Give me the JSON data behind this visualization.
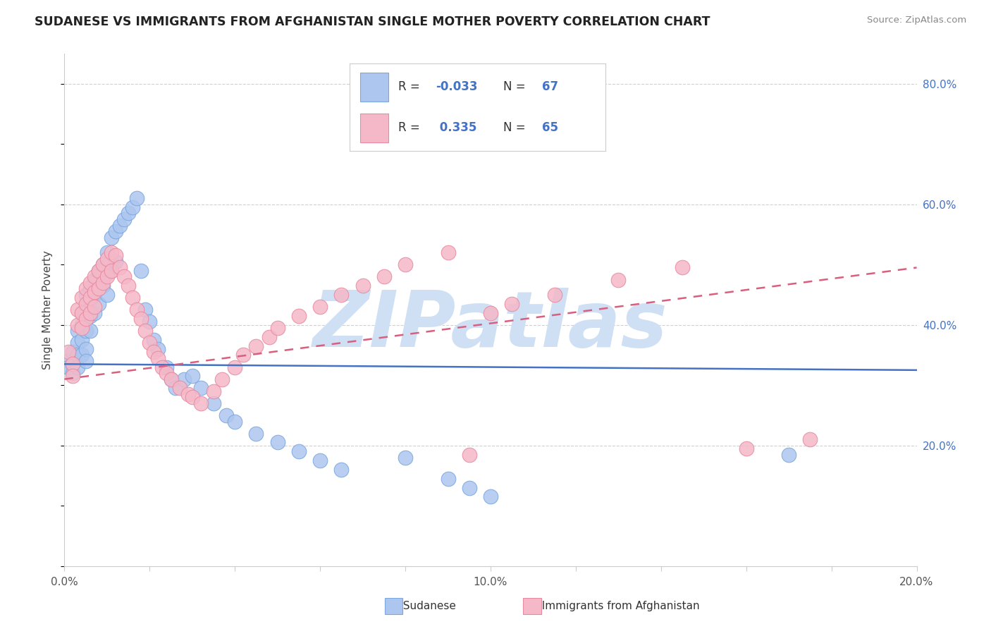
{
  "title": "SUDANESE VS IMMIGRANTS FROM AFGHANISTAN SINGLE MOTHER POVERTY CORRELATION CHART",
  "source": "Source: ZipAtlas.com",
  "ylabel": "Single Mother Poverty",
  "xlim": [
    0.0,
    0.2
  ],
  "ylim": [
    0.0,
    0.85
  ],
  "xticks": [
    0.0,
    0.02,
    0.04,
    0.06,
    0.08,
    0.1,
    0.12,
    0.14,
    0.16,
    0.18,
    0.2
  ],
  "xtick_labels_show": [
    0.0,
    0.1,
    0.2
  ],
  "yticks_right": [
    0.2,
    0.4,
    0.6,
    0.8
  ],
  "ytick_labels": [
    "20.0%",
    "40.0%",
    "60.0%",
    "80.0%"
  ],
  "series1_name": "Sudanese",
  "series1_R": "-0.033",
  "series1_N": "67",
  "series1_color": "#adc6ef",
  "series1_border_color": "#7ba7de",
  "series1_line_color": "#4472c4",
  "series2_name": "Immigrants from Afghanistan",
  "series2_R": "0.335",
  "series2_N": "65",
  "series2_color": "#f5b8c8",
  "series2_border_color": "#e88aa0",
  "series2_line_color": "#d95f7e",
  "watermark": "ZIPatlas",
  "watermark_color": "#cfe0f5",
  "background_color": "#ffffff",
  "grid_color": "#d0d0d0",
  "axis_color": "#cccccc",
  "text_color": "#555555",
  "legend_R_color": "#4472c4",
  "legend_text_color": "#333333",
  "line1_y0": 0.335,
  "line1_y1": 0.325,
  "line2_y0": 0.31,
  "line2_y1": 0.495,
  "s1_x": [
    0.001,
    0.001,
    0.002,
    0.002,
    0.002,
    0.003,
    0.003,
    0.003,
    0.003,
    0.004,
    0.004,
    0.004,
    0.004,
    0.005,
    0.005,
    0.005,
    0.005,
    0.005,
    0.005,
    0.006,
    0.006,
    0.006,
    0.006,
    0.007,
    0.007,
    0.007,
    0.008,
    0.008,
    0.008,
    0.009,
    0.009,
    0.01,
    0.01,
    0.01,
    0.011,
    0.011,
    0.012,
    0.012,
    0.013,
    0.014,
    0.015,
    0.016,
    0.017,
    0.018,
    0.019,
    0.02,
    0.021,
    0.022,
    0.024,
    0.025,
    0.026,
    0.028,
    0.03,
    0.032,
    0.035,
    0.038,
    0.04,
    0.045,
    0.05,
    0.055,
    0.06,
    0.065,
    0.08,
    0.09,
    0.095,
    0.1,
    0.17
  ],
  "s1_y": [
    0.34,
    0.33,
    0.355,
    0.335,
    0.32,
    0.39,
    0.37,
    0.35,
    0.33,
    0.42,
    0.4,
    0.375,
    0.35,
    0.45,
    0.435,
    0.41,
    0.39,
    0.36,
    0.34,
    0.46,
    0.44,
    0.415,
    0.39,
    0.475,
    0.45,
    0.42,
    0.49,
    0.46,
    0.435,
    0.5,
    0.465,
    0.52,
    0.485,
    0.45,
    0.545,
    0.49,
    0.555,
    0.505,
    0.565,
    0.575,
    0.585,
    0.595,
    0.61,
    0.49,
    0.425,
    0.405,
    0.375,
    0.36,
    0.33,
    0.31,
    0.295,
    0.31,
    0.315,
    0.295,
    0.27,
    0.25,
    0.24,
    0.22,
    0.205,
    0.19,
    0.175,
    0.16,
    0.18,
    0.145,
    0.13,
    0.115,
    0.185
  ],
  "s2_x": [
    0.001,
    0.002,
    0.002,
    0.003,
    0.003,
    0.004,
    0.004,
    0.004,
    0.005,
    0.005,
    0.005,
    0.006,
    0.006,
    0.006,
    0.007,
    0.007,
    0.007,
    0.008,
    0.008,
    0.009,
    0.009,
    0.01,
    0.01,
    0.011,
    0.011,
    0.012,
    0.013,
    0.014,
    0.015,
    0.016,
    0.017,
    0.018,
    0.019,
    0.02,
    0.021,
    0.022,
    0.023,
    0.024,
    0.025,
    0.027,
    0.029,
    0.03,
    0.032,
    0.035,
    0.037,
    0.04,
    0.042,
    0.045,
    0.048,
    0.05,
    0.055,
    0.06,
    0.065,
    0.07,
    0.075,
    0.08,
    0.09,
    0.095,
    0.1,
    0.105,
    0.115,
    0.13,
    0.145,
    0.16,
    0.175
  ],
  "s2_y": [
    0.355,
    0.335,
    0.315,
    0.425,
    0.4,
    0.445,
    0.42,
    0.395,
    0.46,
    0.435,
    0.41,
    0.47,
    0.445,
    0.42,
    0.48,
    0.455,
    0.43,
    0.49,
    0.46,
    0.5,
    0.47,
    0.51,
    0.48,
    0.52,
    0.49,
    0.515,
    0.495,
    0.48,
    0.465,
    0.445,
    0.425,
    0.41,
    0.39,
    0.37,
    0.355,
    0.345,
    0.33,
    0.32,
    0.31,
    0.295,
    0.285,
    0.28,
    0.27,
    0.29,
    0.31,
    0.33,
    0.35,
    0.365,
    0.38,
    0.395,
    0.415,
    0.43,
    0.45,
    0.465,
    0.48,
    0.5,
    0.52,
    0.185,
    0.42,
    0.435,
    0.45,
    0.475,
    0.495,
    0.195,
    0.21
  ]
}
